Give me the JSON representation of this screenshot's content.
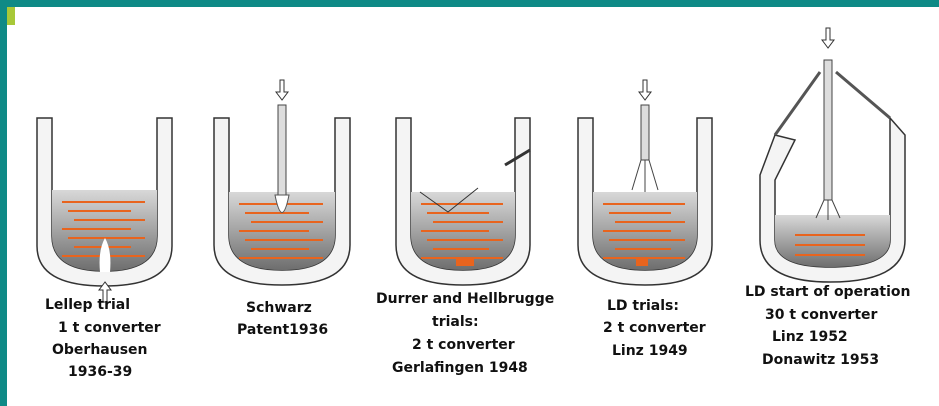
{
  "figures": [
    {
      "lines": [
        "Lellep trial",
        "1 t converter",
        "Oberhausen",
        "1936-39"
      ]
    },
    {
      "lines": [
        "Schwarz",
        "Patent1936"
      ]
    },
    {
      "lines": [
        "Durrer and Hellbrugge",
        "trials:",
        "2 t converter",
        "Gerlafingen 1948"
      ]
    },
    {
      "lines": [
        "LD trials:",
        "2 t converter",
        "Linz 1949"
      ]
    },
    {
      "lines": [
        "LD start of operation",
        "30 t converter",
        "Linz 1952",
        "Donawitz 1953"
      ]
    }
  ]
}
